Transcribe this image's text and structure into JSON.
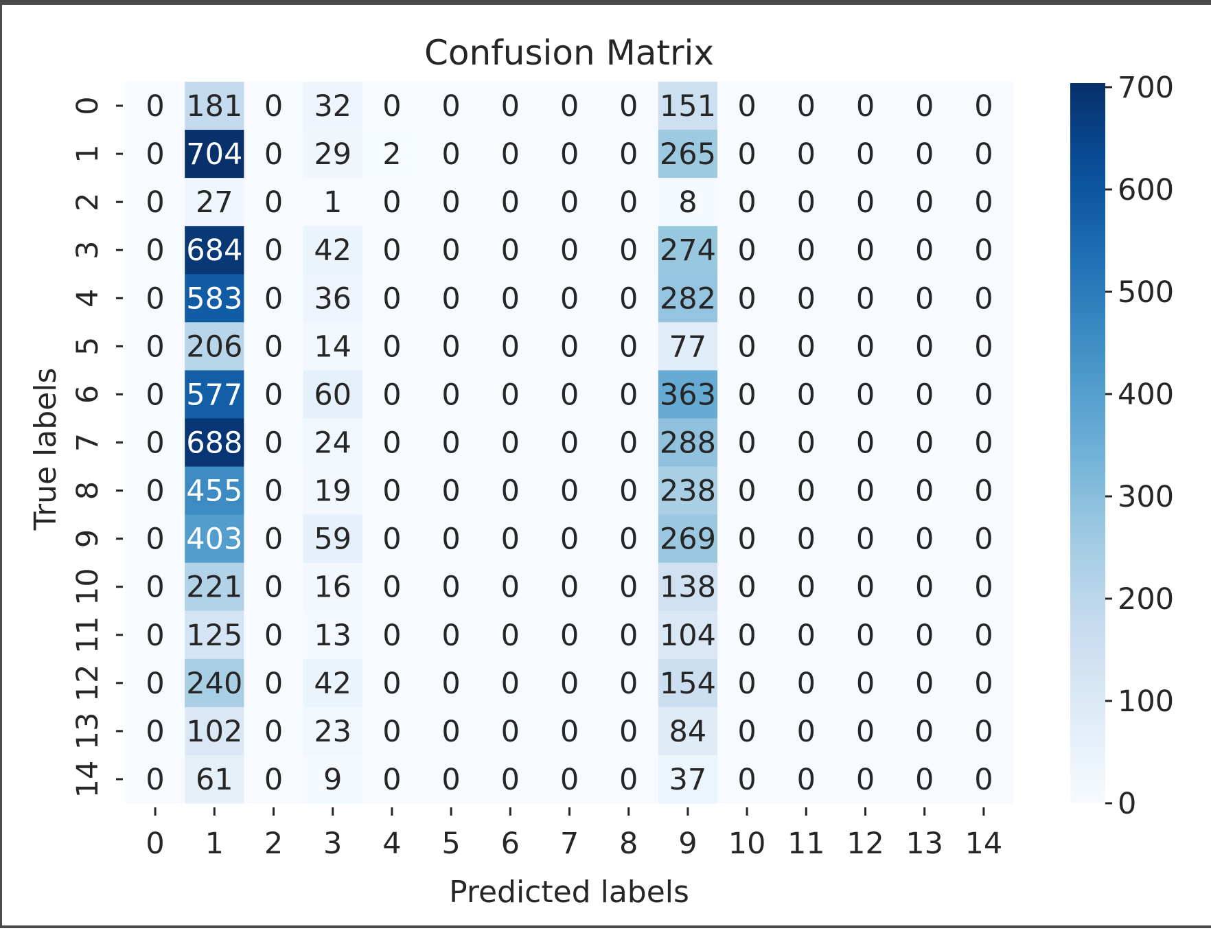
{
  "chart_data": {
    "type": "heatmap",
    "title": "Confusion Matrix",
    "xlabel": "Predicted labels",
    "ylabel": "True labels",
    "x_categories": [
      "0",
      "1",
      "2",
      "3",
      "4",
      "5",
      "6",
      "7",
      "8",
      "9",
      "10",
      "11",
      "12",
      "13",
      "14"
    ],
    "y_categories": [
      "0",
      "1",
      "2",
      "3",
      "4",
      "5",
      "6",
      "7",
      "8",
      "9",
      "10",
      "11",
      "12",
      "13",
      "14"
    ],
    "values": [
      [
        0,
        181,
        0,
        32,
        0,
        0,
        0,
        0,
        0,
        151,
        0,
        0,
        0,
        0,
        0
      ],
      [
        0,
        704,
        0,
        29,
        2,
        0,
        0,
        0,
        0,
        265,
        0,
        0,
        0,
        0,
        0
      ],
      [
        0,
        27,
        0,
        1,
        0,
        0,
        0,
        0,
        0,
        8,
        0,
        0,
        0,
        0,
        0
      ],
      [
        0,
        684,
        0,
        42,
        0,
        0,
        0,
        0,
        0,
        274,
        0,
        0,
        0,
        0,
        0
      ],
      [
        0,
        583,
        0,
        36,
        0,
        0,
        0,
        0,
        0,
        282,
        0,
        0,
        0,
        0,
        0
      ],
      [
        0,
        206,
        0,
        14,
        0,
        0,
        0,
        0,
        0,
        77,
        0,
        0,
        0,
        0,
        0
      ],
      [
        0,
        577,
        0,
        60,
        0,
        0,
        0,
        0,
        0,
        363,
        0,
        0,
        0,
        0,
        0
      ],
      [
        0,
        688,
        0,
        24,
        0,
        0,
        0,
        0,
        0,
        288,
        0,
        0,
        0,
        0,
        0
      ],
      [
        0,
        455,
        0,
        19,
        0,
        0,
        0,
        0,
        0,
        238,
        0,
        0,
        0,
        0,
        0
      ],
      [
        0,
        403,
        0,
        59,
        0,
        0,
        0,
        0,
        0,
        269,
        0,
        0,
        0,
        0,
        0
      ],
      [
        0,
        221,
        0,
        16,
        0,
        0,
        0,
        0,
        0,
        138,
        0,
        0,
        0,
        0,
        0
      ],
      [
        0,
        125,
        0,
        13,
        0,
        0,
        0,
        0,
        0,
        104,
        0,
        0,
        0,
        0,
        0
      ],
      [
        0,
        240,
        0,
        42,
        0,
        0,
        0,
        0,
        0,
        154,
        0,
        0,
        0,
        0,
        0
      ],
      [
        0,
        102,
        0,
        23,
        0,
        0,
        0,
        0,
        0,
        84,
        0,
        0,
        0,
        0,
        0
      ],
      [
        0,
        61,
        0,
        9,
        0,
        0,
        0,
        0,
        0,
        37,
        0,
        0,
        0,
        0,
        0
      ]
    ],
    "colorbar": {
      "ticks": [
        0,
        100,
        200,
        300,
        400,
        500,
        600,
        700
      ],
      "vmin": 0,
      "vmax": 704,
      "colormap": "Blues",
      "low_color": "#f7fbff",
      "high_color": "#08306b"
    },
    "grid": false
  }
}
